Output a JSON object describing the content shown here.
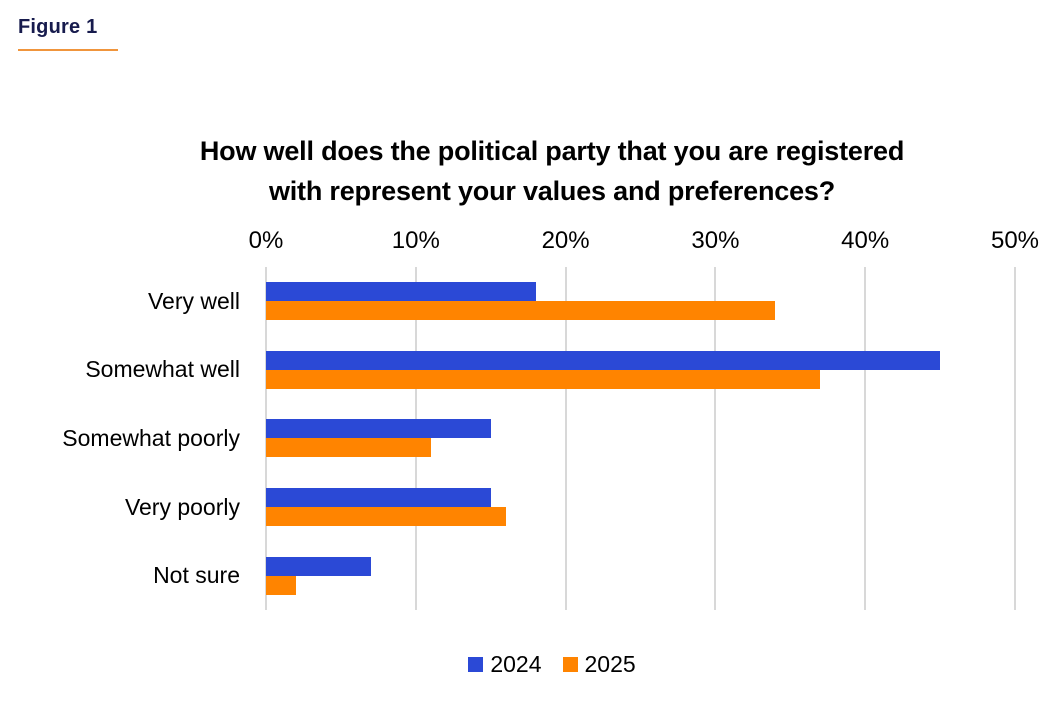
{
  "header": {
    "figure_label": "Figure 1"
  },
  "chart": {
    "title_line1": "How well does the political party that you are registered",
    "title_line2": "with represent your values and preferences?"
  },
  "chart_data": {
    "type": "bar",
    "orientation": "horizontal",
    "title": "How well does the political party that you are registered with represent your values and preferences?",
    "categories": [
      "Very well",
      "Somewhat well",
      "Somewhat poorly",
      "Very poorly",
      "Not sure"
    ],
    "series": [
      {
        "name": "2024",
        "color": "#2b49d6",
        "values": [
          18,
          45,
          15,
          15,
          7
        ]
      },
      {
        "name": "2025",
        "color": "#ff8400",
        "values": [
          34,
          37,
          11,
          16,
          2
        ]
      }
    ],
    "x_ticks": [
      "0%",
      "10%",
      "20%",
      "30%",
      "40%",
      "50%"
    ],
    "xlim": [
      0,
      50
    ],
    "axis_position": "top",
    "grid": true,
    "legend_position": "bottom"
  },
  "colors": {
    "series_2024": "#2b49d6",
    "series_2025": "#ff8400",
    "figure_label": "#171b4d",
    "figure_underline": "#f0953c",
    "gridline": "#d8d8d8",
    "title_text": "#000000",
    "background": "#ffffff"
  }
}
